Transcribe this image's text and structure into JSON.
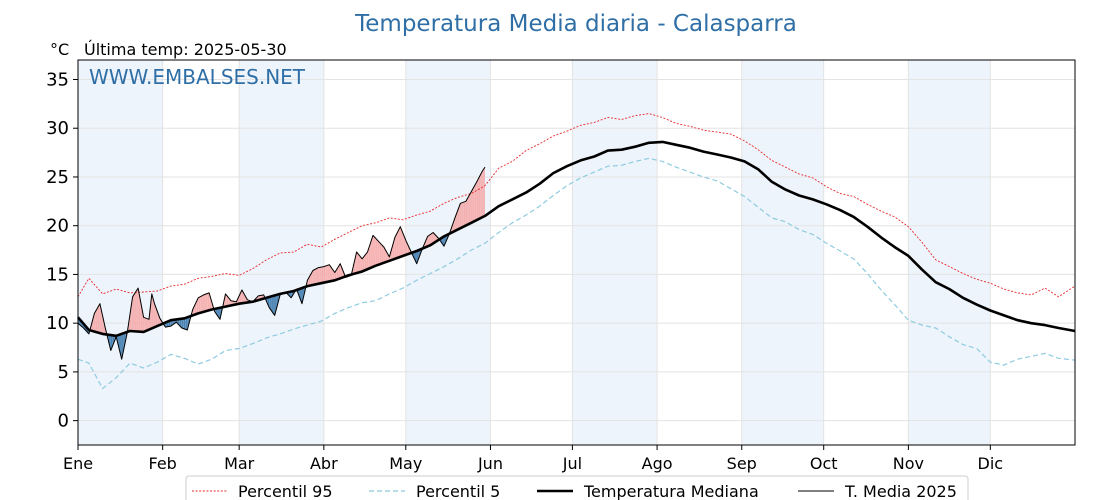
{
  "chart_data": {
    "type": "line",
    "title": "Temperatura Media diaria - Calasparra",
    "subtitle": "Última temp: 2025-05-30",
    "ylabel": "°C",
    "watermark": "WWW.EMBALSES.NET",
    "xlim": [
      1,
      366
    ],
    "ylim": [
      -2.5,
      37
    ],
    "yticks": [
      0,
      5,
      10,
      15,
      20,
      25,
      30,
      35
    ],
    "xticks": [
      {
        "label": "Ene",
        "day": 1
      },
      {
        "label": "Feb",
        "day": 32
      },
      {
        "label": "Mar",
        "day": 60
      },
      {
        "label": "Abr",
        "day": 91
      },
      {
        "label": "May",
        "day": 121
      },
      {
        "label": "Jun",
        "day": 152
      },
      {
        "label": "Jul",
        "day": 182
      },
      {
        "label": "Ago",
        "day": 213
      },
      {
        "label": "Sep",
        "day": 244
      },
      {
        "label": "Oct",
        "day": 274
      },
      {
        "label": "Nov",
        "day": 305
      },
      {
        "label": "Dic",
        "day": 335
      }
    ],
    "shaded_months": [
      [
        1,
        32
      ],
      [
        60,
        91
      ],
      [
        121,
        152
      ],
      [
        182,
        213
      ],
      [
        244,
        274
      ],
      [
        305,
        335
      ]
    ],
    "grid": true,
    "legend_position": "bottom",
    "colors": {
      "p95": "#e8292c",
      "p5": "#8ecbe0",
      "median": "#000000",
      "actual": "#000000",
      "above": "#f4a9a9",
      "below": "#3a78ad",
      "shade": "#eef4fb",
      "title": "#2f6fa6"
    },
    "series": [
      {
        "name": "Temperatura Mediana",
        "x": [
          1,
          5,
          10,
          15,
          20,
          25,
          30,
          35,
          40,
          45,
          50,
          55,
          60,
          65,
          70,
          75,
          80,
          85,
          90,
          95,
          100,
          105,
          110,
          115,
          120,
          125,
          130,
          135,
          140,
          145,
          150,
          155,
          160,
          165,
          170,
          175,
          180,
          185,
          190,
          195,
          200,
          205,
          210,
          215,
          220,
          225,
          230,
          235,
          240,
          245,
          250,
          255,
          260,
          265,
          270,
          275,
          280,
          285,
          290,
          295,
          300,
          305,
          310,
          315,
          320,
          325,
          330,
          335,
          340,
          345,
          350,
          355,
          360,
          366
        ],
        "values": [
          10.6,
          9.3,
          8.9,
          8.7,
          9.2,
          9.1,
          9.7,
          10.3,
          10.5,
          11.0,
          11.4,
          11.7,
          12.0,
          12.2,
          12.6,
          13.0,
          13.3,
          13.8,
          14.1,
          14.4,
          14.9,
          15.3,
          15.9,
          16.4,
          16.9,
          17.4,
          18.0,
          18.9,
          19.6,
          20.3,
          21.0,
          22.0,
          22.7,
          23.4,
          24.3,
          25.4,
          26.1,
          26.7,
          27.1,
          27.7,
          27.8,
          28.1,
          28.5,
          28.6,
          28.3,
          28.0,
          27.6,
          27.3,
          27.0,
          26.6,
          25.8,
          24.5,
          23.7,
          23.1,
          22.7,
          22.2,
          21.6,
          20.9,
          19.9,
          18.8,
          17.8,
          16.9,
          15.5,
          14.2,
          13.5,
          12.6,
          11.9,
          11.3,
          10.8,
          10.3,
          10.0,
          9.8,
          9.5,
          9.2
        ]
      },
      {
        "name": "Percentil 95",
        "x": [
          1,
          5,
          10,
          15,
          20,
          25,
          30,
          35,
          40,
          45,
          50,
          55,
          60,
          65,
          70,
          75,
          80,
          85,
          90,
          95,
          100,
          105,
          110,
          115,
          120,
          125,
          130,
          135,
          140,
          145,
          150,
          155,
          160,
          165,
          170,
          175,
          180,
          185,
          190,
          195,
          200,
          205,
          210,
          215,
          220,
          225,
          230,
          235,
          240,
          245,
          250,
          255,
          260,
          265,
          270,
          275,
          280,
          285,
          290,
          295,
          300,
          305,
          310,
          315,
          320,
          325,
          330,
          335,
          340,
          345,
          350,
          355,
          360,
          366
        ],
        "values": [
          12.7,
          14.6,
          13.0,
          13.5,
          13.1,
          13.2,
          13.3,
          13.8,
          14.0,
          14.6,
          14.8,
          15.1,
          14.9,
          15.6,
          16.5,
          17.2,
          17.3,
          18.1,
          17.8,
          18.6,
          19.3,
          20.0,
          20.3,
          20.8,
          20.6,
          21.1,
          21.5,
          22.3,
          22.9,
          23.3,
          24.1,
          25.9,
          26.6,
          27.7,
          28.4,
          29.2,
          29.7,
          30.3,
          30.6,
          31.1,
          30.9,
          31.3,
          31.5,
          31.1,
          30.5,
          30.2,
          29.8,
          29.6,
          29.4,
          28.7,
          27.8,
          26.7,
          26.0,
          25.3,
          24.9,
          24.0,
          23.3,
          23.0,
          22.2,
          21.5,
          20.9,
          19.9,
          18.3,
          16.5,
          15.8,
          15.1,
          14.5,
          14.1,
          13.5,
          13.1,
          12.9,
          13.6,
          12.7,
          13.8
        ]
      },
      {
        "name": "Percentil 5",
        "x": [
          1,
          5,
          10,
          15,
          20,
          25,
          30,
          35,
          40,
          45,
          50,
          55,
          60,
          65,
          70,
          75,
          80,
          85,
          90,
          95,
          100,
          105,
          110,
          115,
          120,
          125,
          130,
          135,
          140,
          145,
          150,
          155,
          160,
          165,
          170,
          175,
          180,
          185,
          190,
          195,
          200,
          205,
          210,
          215,
          220,
          225,
          230,
          235,
          240,
          245,
          250,
          255,
          260,
          265,
          270,
          275,
          280,
          285,
          290,
          295,
          300,
          305,
          310,
          315,
          320,
          325,
          330,
          335,
          340,
          345,
          350,
          355,
          360,
          366
        ],
        "values": [
          6.3,
          5.9,
          3.3,
          4.4,
          5.9,
          5.4,
          6.0,
          6.8,
          6.4,
          5.8,
          6.3,
          7.2,
          7.4,
          7.9,
          8.5,
          8.9,
          9.4,
          9.8,
          10.2,
          11.0,
          11.6,
          12.1,
          12.3,
          13.0,
          13.6,
          14.4,
          15.1,
          15.8,
          16.6,
          17.5,
          18.2,
          19.3,
          20.3,
          21.1,
          22.0,
          23.1,
          24.1,
          24.9,
          25.5,
          26.1,
          26.2,
          26.6,
          26.9,
          26.6,
          26.0,
          25.5,
          25.0,
          24.6,
          23.8,
          23.0,
          21.9,
          20.8,
          20.4,
          19.6,
          19.1,
          18.2,
          17.4,
          16.6,
          15.1,
          13.4,
          11.9,
          10.3,
          9.8,
          9.5,
          8.6,
          7.8,
          7.4,
          6.0,
          5.7,
          6.3,
          6.6,
          6.9,
          6.4,
          6.2
        ]
      },
      {
        "name": "T. Media 2025",
        "x": [
          1,
          3,
          5,
          7,
          9,
          11,
          13,
          15,
          17,
          19,
          21,
          23,
          25,
          27,
          28,
          29,
          31,
          33,
          35,
          37,
          39,
          41,
          43,
          45,
          47,
          49,
          51,
          53,
          55,
          57,
          59,
          61,
          63,
          65,
          67,
          69,
          71,
          73,
          75,
          77,
          79,
          81,
          83,
          85,
          87,
          89,
          91,
          93,
          95,
          97,
          99,
          101,
          103,
          105,
          107,
          109,
          111,
          113,
          115,
          117,
          119,
          121,
          123,
          125,
          127,
          129,
          131,
          133,
          135,
          137,
          139,
          141,
          143,
          145,
          147,
          149,
          150
        ],
        "values": [
          10.0,
          9.5,
          8.9,
          11.0,
          12.0,
          9.5,
          7.2,
          8.6,
          6.3,
          9.0,
          12.7,
          13.6,
          10.6,
          10.4,
          13.0,
          12.0,
          10.5,
          9.6,
          9.7,
          10.1,
          9.5,
          9.3,
          11.4,
          12.6,
          12.9,
          13.1,
          11.2,
          10.4,
          13.0,
          12.3,
          12.2,
          13.4,
          12.4,
          12.2,
          12.8,
          12.9,
          11.6,
          10.8,
          12.9,
          13.2,
          12.6,
          13.5,
          12.0,
          14.4,
          15.4,
          15.7,
          15.8,
          16.0,
          15.2,
          16.1,
          14.7,
          14.9,
          17.3,
          16.6,
          17.3,
          19.0,
          18.4,
          17.8,
          16.8,
          18.8,
          19.9,
          18.5,
          17.3,
          16.1,
          17.6,
          18.9,
          19.3,
          18.7,
          17.9,
          19.2,
          20.8,
          22.3,
          22.5,
          23.5,
          24.5,
          25.6,
          26.0
        ]
      }
    ]
  }
}
